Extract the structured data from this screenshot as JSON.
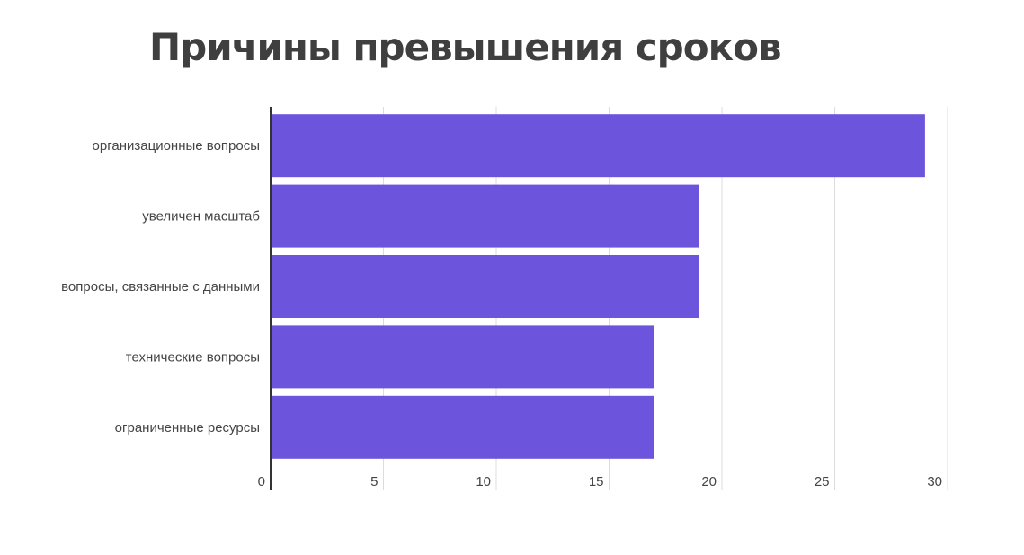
{
  "chart_data": {
    "type": "bar",
    "orientation": "horizontal",
    "title": "Причины превышения сроков",
    "xlabel": "",
    "ylabel": "",
    "categories": [
      "организационные вопросы",
      "увеличен масштаб",
      "вопросы, связанные с данными",
      "технические вопросы",
      "ограниченные ресурсы"
    ],
    "values": [
      29,
      19,
      19,
      17,
      17
    ],
    "xlim": [
      0,
      30
    ],
    "xticks": [
      0,
      5,
      10,
      15,
      20,
      25,
      30
    ],
    "grid": true,
    "legend": "none",
    "bar_color": "#6c55dc"
  }
}
